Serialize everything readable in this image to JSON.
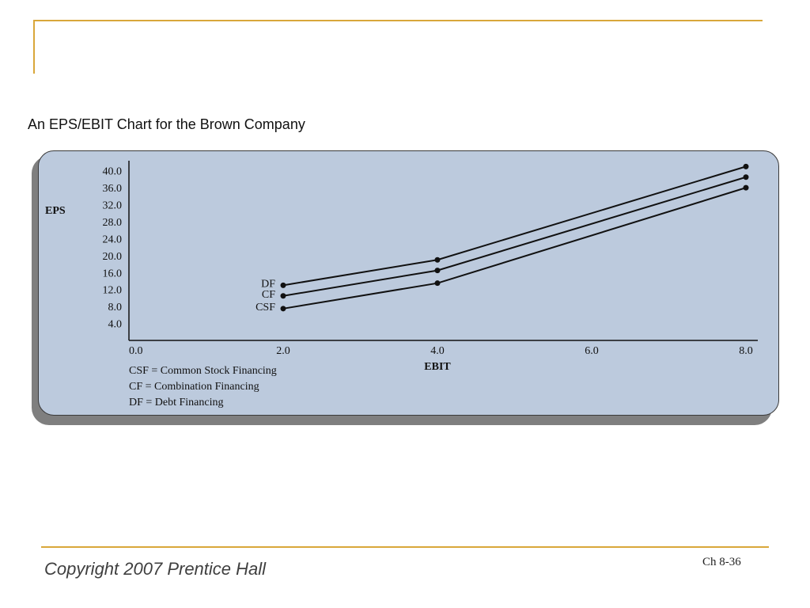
{
  "slide": {
    "subtitle": "An EPS/EBIT Chart for the Brown Company",
    "copyright": "Copyright 2007 Prentice Hall",
    "slide_number": "Ch 8-36"
  },
  "colors": {
    "accent_rule": "#d9a73a",
    "panel_fill": "#bccadd",
    "line": "#111111"
  },
  "chart_data": {
    "type": "line",
    "xlabel": "EBIT",
    "ylabel": "EPS",
    "xlim": [
      0,
      8
    ],
    "ylim": [
      0,
      42
    ],
    "x_ticks": [
      "0.0",
      "2.0",
      "4.0",
      "6.0",
      "8.0"
    ],
    "y_ticks": [
      "4.0",
      "8.0",
      "12.0",
      "16.0",
      "20.0",
      "24.0",
      "28.0",
      "32.0",
      "36.0",
      "40.0"
    ],
    "grid": false,
    "series": [
      {
        "name": "DF",
        "x": [
          2.0,
          4.0,
          8.0
        ],
        "y": [
          13.0,
          19.0,
          41.0
        ]
      },
      {
        "name": "CF",
        "x": [
          2.0,
          4.0,
          8.0
        ],
        "y": [
          10.5,
          16.5,
          38.5
        ]
      },
      {
        "name": "CSF",
        "x": [
          2.0,
          4.0,
          8.0
        ],
        "y": [
          7.5,
          13.5,
          36.0
        ]
      }
    ],
    "legend": [
      "CSF = Common Stock Financing",
      "CF  = Combination Financing",
      "DF  = Debt Financing"
    ]
  }
}
